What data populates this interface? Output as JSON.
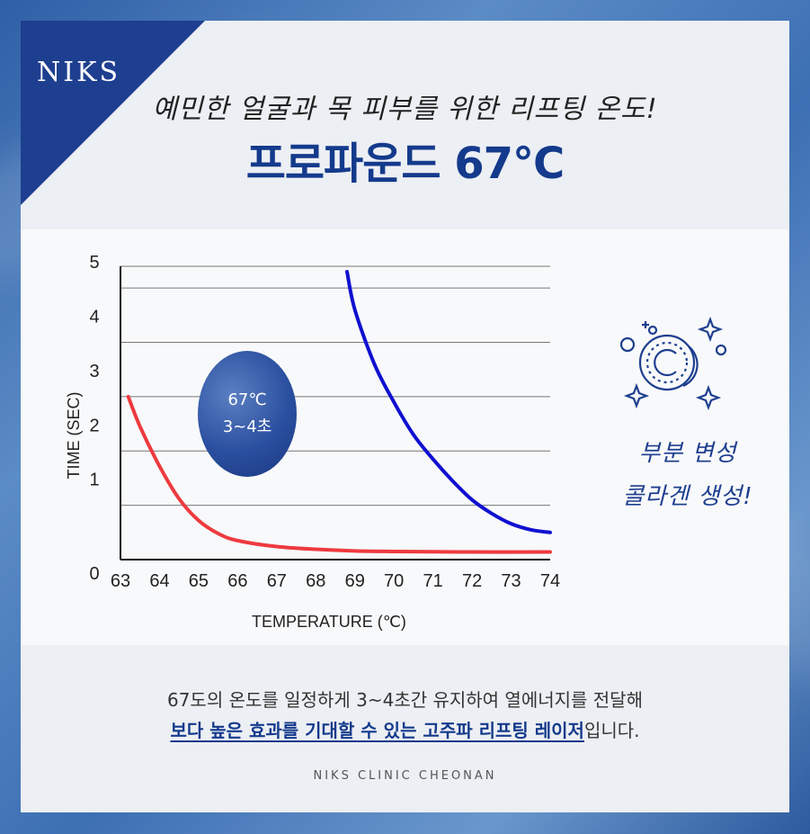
{
  "brand": {
    "logo": "NIKS"
  },
  "header": {
    "subtitle": "예민한 얼굴과 목 피부를 위한 리프팅 온도!",
    "title": "프로파운드 67°C"
  },
  "badge": {
    "line1": "67℃",
    "line2": "3~4초"
  },
  "side": {
    "icon": "collagen-sparkle-icon",
    "line1": "부분 변성",
    "line2": "콜라겐 생성!"
  },
  "description": {
    "line1": "67도의 온도를 일정하게 3~4초간 유지하여 열에너지를 전달해",
    "line2_highlight": "보다 높은 효과를 기대할 수 있는 고주파 리프팅 레이저",
    "line2_tail": "입니다."
  },
  "footer": {
    "text": "NIKS CLINIC CHEONAN"
  },
  "colors": {
    "brand": "#1e3f8f",
    "red_series": "#ee3a3f",
    "blue_series": "#1010d0"
  },
  "chart_data": {
    "type": "line",
    "xlabel": "TEMPERATURE (℃)",
    "ylabel": "TIME (SEC)",
    "xlim": [
      63,
      74
    ],
    "ylim": [
      0,
      5
    ],
    "x_ticks": [
      63,
      64,
      65,
      66,
      67,
      68,
      69,
      70,
      71,
      72,
      73,
      74
    ],
    "y_ticks": [
      0,
      1,
      2,
      3,
      4,
      5
    ],
    "grid": true,
    "series": [
      {
        "color": "#ee3a3f",
        "points": [
          [
            63.2,
            3.0
          ],
          [
            63.5,
            2.45
          ],
          [
            64.0,
            1.72
          ],
          [
            64.5,
            1.12
          ],
          [
            65.0,
            0.72
          ],
          [
            65.5,
            0.48
          ],
          [
            66.0,
            0.35
          ],
          [
            67.0,
            0.24
          ],
          [
            68.0,
            0.19
          ],
          [
            69.0,
            0.16
          ],
          [
            70.0,
            0.15
          ],
          [
            72.0,
            0.14
          ],
          [
            74.0,
            0.14
          ]
        ]
      },
      {
        "color": "#1010d0",
        "points": [
          [
            68.8,
            5.3
          ],
          [
            69.0,
            4.6
          ],
          [
            69.5,
            3.6
          ],
          [
            70.0,
            2.9
          ],
          [
            70.5,
            2.3
          ],
          [
            71.0,
            1.85
          ],
          [
            71.5,
            1.45
          ],
          [
            72.0,
            1.1
          ],
          [
            72.5,
            0.85
          ],
          [
            73.0,
            0.66
          ],
          [
            73.5,
            0.55
          ],
          [
            74.0,
            0.5
          ]
        ]
      }
    ]
  }
}
